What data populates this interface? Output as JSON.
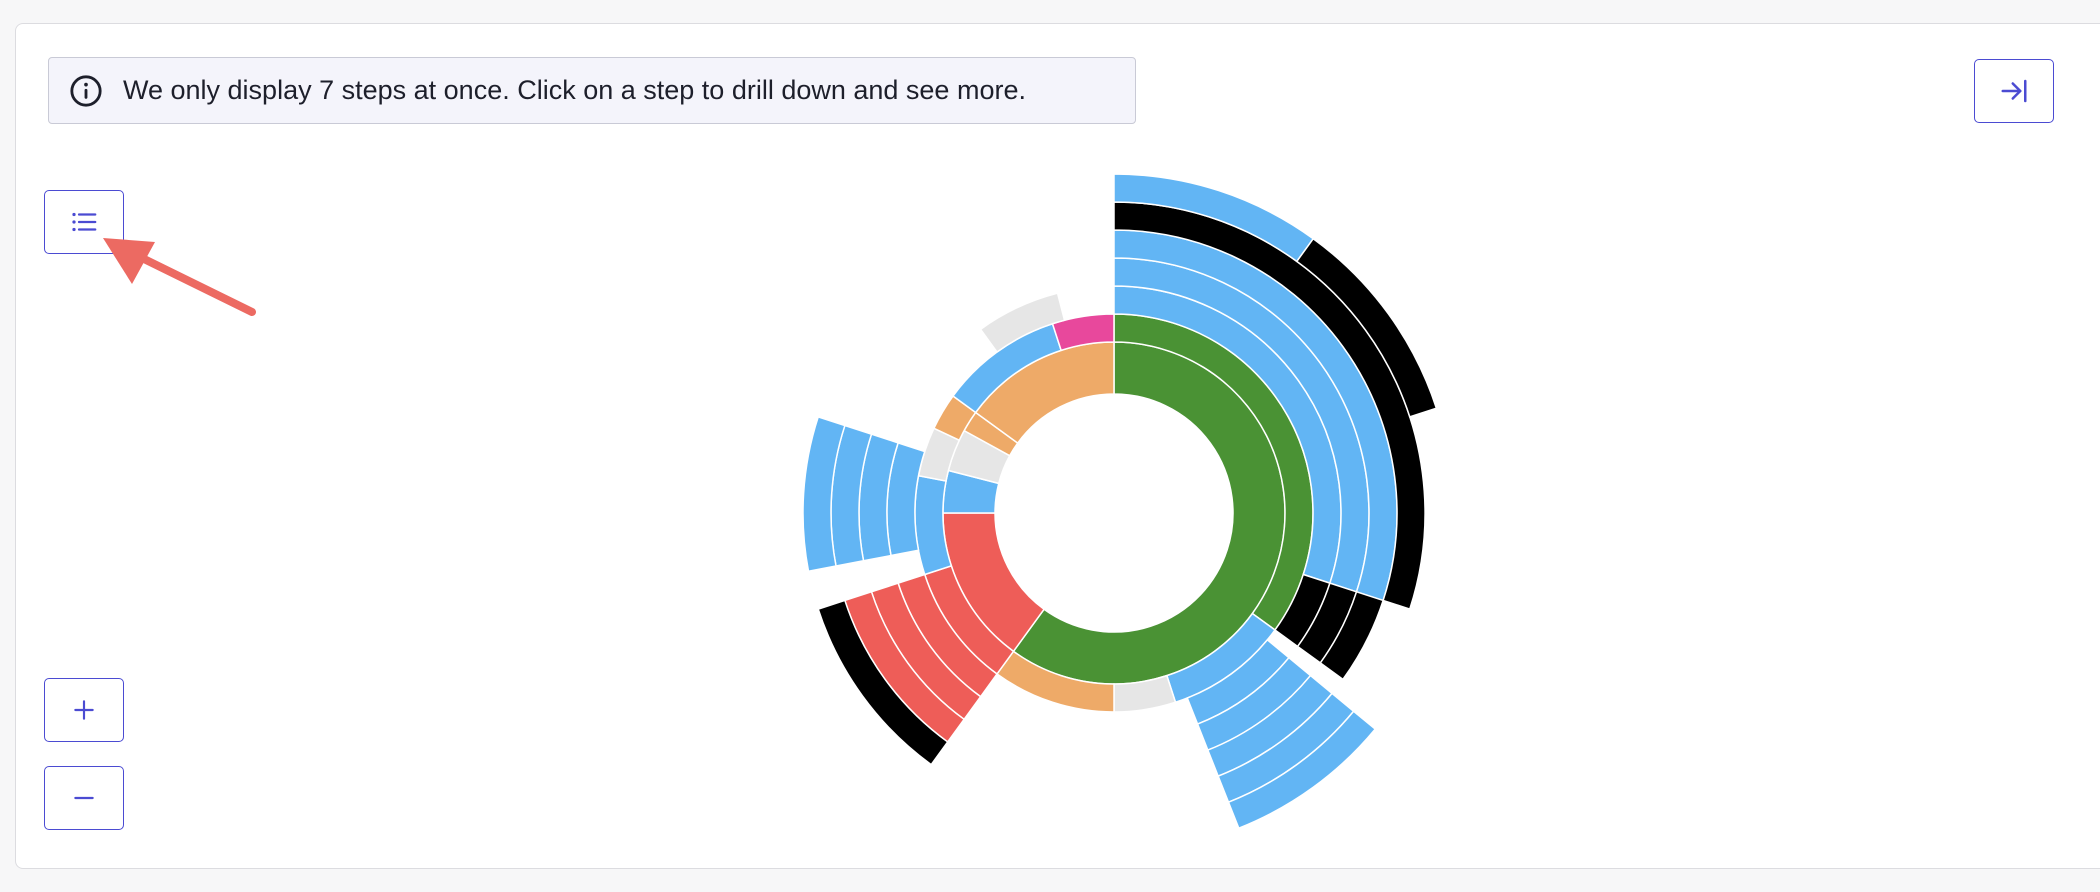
{
  "notice": {
    "text": "We only display 7 steps at once. Click on a step to drill down and see more.",
    "icon": "info-icon"
  },
  "toolbar": {
    "collapse_icon": "collapse-right-icon",
    "list_icon": "list-icon",
    "zoom_in_icon": "plus-icon",
    "zoom_out_icon": "minus-icon"
  },
  "colors": {
    "accent": "#4b4bd2",
    "arrow": "#ec6a62",
    "green": "#4a9234",
    "blue": "#62b5f4",
    "red": "#ee5d58",
    "orange": "#eeaa68",
    "gray": "#e6e6e6",
    "black": "#000000",
    "pink": "#e8489c"
  },
  "chart_data": {
    "type": "sunburst",
    "max_steps_displayed": 7,
    "depths": 7,
    "arcs": [
      {
        "depth": 1,
        "start": 0,
        "end": 0.6,
        "color": "green"
      },
      {
        "depth": 1,
        "start": 0.6,
        "end": 0.75,
        "color": "red"
      },
      {
        "depth": 1,
        "start": 0.75,
        "end": 0.79,
        "color": "blue"
      },
      {
        "depth": 1,
        "start": 0.79,
        "end": 0.83,
        "color": "gray"
      },
      {
        "depth": 1,
        "start": 0.83,
        "end": 0.85,
        "color": "orange"
      },
      {
        "depth": 1,
        "start": 0.85,
        "end": 1.0,
        "color": "orange"
      },
      {
        "depth": 2,
        "start": 0,
        "end": 0.35,
        "color": "green"
      },
      {
        "depth": 2,
        "start": 0.35,
        "end": 0.45,
        "color": "blue"
      },
      {
        "depth": 2,
        "start": 0.45,
        "end": 0.5,
        "color": "gray"
      },
      {
        "depth": 2,
        "start": 0.5,
        "end": 0.6,
        "color": "orange"
      },
      {
        "depth": 2,
        "start": 0.6,
        "end": 0.7,
        "color": "red"
      },
      {
        "depth": 2,
        "start": 0.7,
        "end": 0.78,
        "color": "blue"
      },
      {
        "depth": 2,
        "start": 0.78,
        "end": 0.82,
        "color": "gray"
      },
      {
        "depth": 2,
        "start": 0.82,
        "end": 0.85,
        "color": "orange"
      },
      {
        "depth": 2,
        "start": 0.85,
        "end": 0.95,
        "color": "blue"
      },
      {
        "depth": 2,
        "start": 0.95,
        "end": 1.0,
        "color": "pink"
      },
      {
        "depth": 3,
        "start": 0,
        "end": 0.3,
        "color": "blue"
      },
      {
        "depth": 3,
        "start": 0.3,
        "end": 0.35,
        "color": "black"
      },
      {
        "depth": 3,
        "start": 0.36,
        "end": 0.44,
        "color": "blue"
      },
      {
        "depth": 3,
        "start": 0.6,
        "end": 0.7,
        "color": "red"
      },
      {
        "depth": 3,
        "start": 0.72,
        "end": 0.8,
        "color": "blue"
      },
      {
        "depth": 3,
        "start": 0.9,
        "end": 0.96,
        "color": "gray"
      },
      {
        "depth": 4,
        "start": 0,
        "end": 0.3,
        "color": "blue"
      },
      {
        "depth": 4,
        "start": 0.3,
        "end": 0.35,
        "color": "black"
      },
      {
        "depth": 4,
        "start": 0.36,
        "end": 0.44,
        "color": "blue"
      },
      {
        "depth": 4,
        "start": 0.6,
        "end": 0.7,
        "color": "red"
      },
      {
        "depth": 4,
        "start": 0.72,
        "end": 0.8,
        "color": "blue"
      },
      {
        "depth": 5,
        "start": 0,
        "end": 0.3,
        "color": "blue"
      },
      {
        "depth": 5,
        "start": 0.3,
        "end": 0.35,
        "color": "black"
      },
      {
        "depth": 5,
        "start": 0.36,
        "end": 0.44,
        "color": "blue"
      },
      {
        "depth": 5,
        "start": 0.6,
        "end": 0.7,
        "color": "red"
      },
      {
        "depth": 5,
        "start": 0.72,
        "end": 0.8,
        "color": "blue"
      },
      {
        "depth": 6,
        "start": 0,
        "end": 0.3,
        "color": "black"
      },
      {
        "depth": 6,
        "start": 0.36,
        "end": 0.44,
        "color": "blue"
      },
      {
        "depth": 6,
        "start": 0.6,
        "end": 0.7,
        "color": "black"
      },
      {
        "depth": 6,
        "start": 0.72,
        "end": 0.8,
        "color": "blue"
      },
      {
        "depth": 7,
        "start": 0,
        "end": 0.1,
        "color": "blue"
      },
      {
        "depth": 7,
        "start": 0.1,
        "end": 0.2,
        "color": "black"
      },
      {
        "depth": 7,
        "start": 0.36,
        "end": 0.44,
        "color": "blue"
      }
    ]
  }
}
